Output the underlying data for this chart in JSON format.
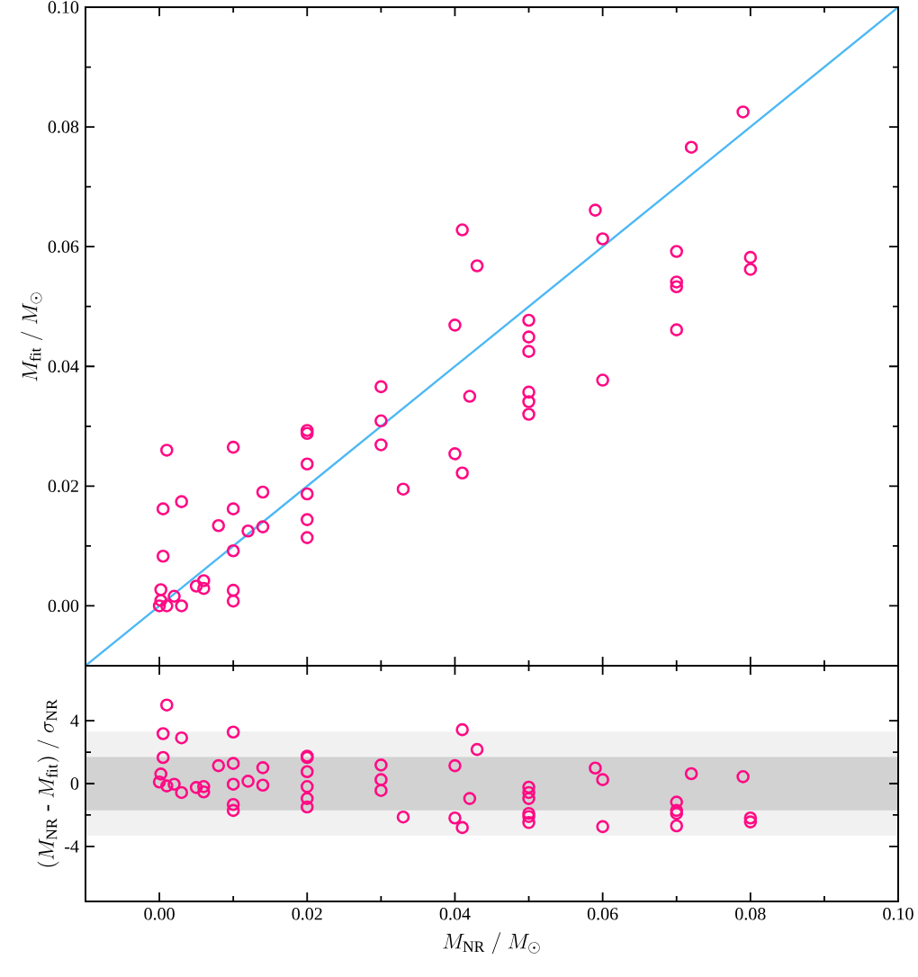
{
  "chart_data": [
    {
      "type": "scatter",
      "ylabel": "M_{\\mathrm{fit}}\\ /\\ M_{\\odot}",
      "xlim": [
        -0.01,
        0.1
      ],
      "ylim": [
        -0.01,
        0.1
      ],
      "xticks": [
        {
          "value": 0,
          "label": null
        },
        {
          "value": 0.02,
          "label": null
        },
        {
          "value": 0.04,
          "label": null
        },
        {
          "value": 0.06,
          "label": null
        },
        {
          "value": 0.08,
          "label": null
        },
        {
          "value": 0.1,
          "label": null
        }
      ],
      "yticks": [
        {
          "value": 0,
          "label": "0.00"
        },
        {
          "value": 0.02,
          "label": "0.02"
        },
        {
          "value": 0.04,
          "label": "0.04"
        },
        {
          "value": 0.06,
          "label": "0.06"
        },
        {
          "value": 0.08,
          "label": "0.08"
        },
        {
          "value": 0.1,
          "label": "0.10"
        }
      ],
      "tick_labels": "y",
      "series": [
        {
          "type": "line",
          "marker": "none",
          "color": "#4cb8f5",
          "x": [
            -0.01,
            0.1
          ],
          "values": [
            -0.01,
            0.1
          ]
        },
        {
          "marker": "circle",
          "color": "#ff0a84",
          "x": [
            0.0,
            0.0002,
            0.0002,
            0.0005,
            0.0005,
            0.001,
            0.001,
            0.002,
            0.003,
            0.003,
            0.005,
            0.006,
            0.006,
            0.008,
            0.01,
            0.01,
            0.01,
            0.01,
            0.01,
            0.012,
            0.014,
            0.014,
            0.02,
            0.02,
            0.02,
            0.02,
            0.02,
            0.02,
            0.03,
            0.03,
            0.03,
            0.033,
            0.04,
            0.04,
            0.041,
            0.041,
            0.042,
            0.043,
            0.05,
            0.05,
            0.05,
            0.05,
            0.05,
            0.05,
            0.059,
            0.06,
            0.06,
            0.07,
            0.07,
            0.07,
            0.07,
            0.072,
            0.079,
            0.08,
            0.08
          ],
          "values": [
            0.0,
            0.0009,
            0.0027,
            0.0083,
            0.0162,
            0.026,
            0.0,
            0.0016,
            0.0174,
            0.0,
            0.0033,
            0.0042,
            0.0029,
            0.0134,
            0.0265,
            0.0162,
            0.0092,
            0.0026,
            0.0008,
            0.0125,
            0.019,
            0.0132,
            0.0293,
            0.0288,
            0.0237,
            0.0187,
            0.0144,
            0.0114,
            0.0366,
            0.0309,
            0.0269,
            0.0195,
            0.0469,
            0.0254,
            0.0628,
            0.0222,
            0.035,
            0.0568,
            0.0477,
            0.0449,
            0.0425,
            0.0357,
            0.0341,
            0.032,
            0.0661,
            0.0613,
            0.0377,
            0.0592,
            0.0541,
            0.0533,
            0.0461,
            0.0766,
            0.0825,
            0.0582,
            0.0562
          ]
        }
      ]
    },
    {
      "type": "scatter",
      "xlabel": "M_{\\mathrm{NR}}\\ /\\ M_{\\odot}",
      "ylabel": "(M_{\\mathrm{NR}}\\ \\textrm{-}\\ M_{\\mathrm{fit}})\\ /\\ \\sigma_{\\mathrm{NR}}",
      "xlim": [
        -0.01,
        0.1
      ],
      "ylim": [
        -7.5,
        7.5
      ],
      "xticks": [
        {
          "value": 0,
          "label": "0.00"
        },
        {
          "value": 0.02,
          "label": "0.02"
        },
        {
          "value": 0.04,
          "label": "0.04"
        },
        {
          "value": 0.06,
          "label": "0.06"
        },
        {
          "value": 0.08,
          "label": "0.08"
        },
        {
          "value": 0.1,
          "label": "0.10"
        }
      ],
      "yticks": [
        -4,
        0,
        4
      ],
      "bands": [
        {
          "axis": "y",
          "from": -3.3,
          "to": 3.3,
          "color": "#f1f1f1"
        },
        {
          "axis": "y",
          "from": -1.7,
          "to": 1.7,
          "color": "#d2d2d2"
        }
      ],
      "series": [
        {
          "marker": "circle",
          "color": "#ff0a84",
          "x": [
            0.0,
            0.0002,
            0.0005,
            0.0005,
            0.001,
            0.001,
            0.002,
            0.003,
            0.003,
            0.005,
            0.006,
            0.006,
            0.008,
            0.01,
            0.01,
            0.01,
            0.01,
            0.01,
            0.012,
            0.014,
            0.014,
            0.02,
            0.02,
            0.02,
            0.02,
            0.02,
            0.02,
            0.03,
            0.03,
            0.03,
            0.033,
            0.04,
            0.04,
            0.041,
            0.041,
            0.042,
            0.043,
            0.05,
            0.05,
            0.05,
            0.05,
            0.05,
            0.05,
            0.059,
            0.06,
            0.06,
            0.07,
            0.07,
            0.07,
            0.07,
            0.072,
            0.079,
            0.08,
            0.08
          ],
          "values": [
            0.1,
            0.61,
            3.18,
            1.66,
            5.0,
            -0.15,
            -0.04,
            2.91,
            -0.57,
            -0.25,
            -0.19,
            -0.53,
            1.14,
            3.28,
            1.28,
            -0.04,
            -1.33,
            -1.71,
            0.15,
            1.01,
            -0.1,
            1.75,
            1.66,
            0.76,
            -0.19,
            -0.95,
            -1.49,
            1.18,
            0.25,
            -0.44,
            -2.13,
            1.14,
            -2.19,
            3.43,
            -2.8,
            -0.95,
            2.17,
            -0.23,
            -0.57,
            -0.95,
            -1.9,
            -2.1,
            -2.48,
            0.99,
            0.25,
            -2.74,
            -1.18,
            -1.71,
            -1.9,
            -2.69,
            0.63,
            0.44,
            -2.19,
            -2.44
          ]
        }
      ]
    }
  ]
}
